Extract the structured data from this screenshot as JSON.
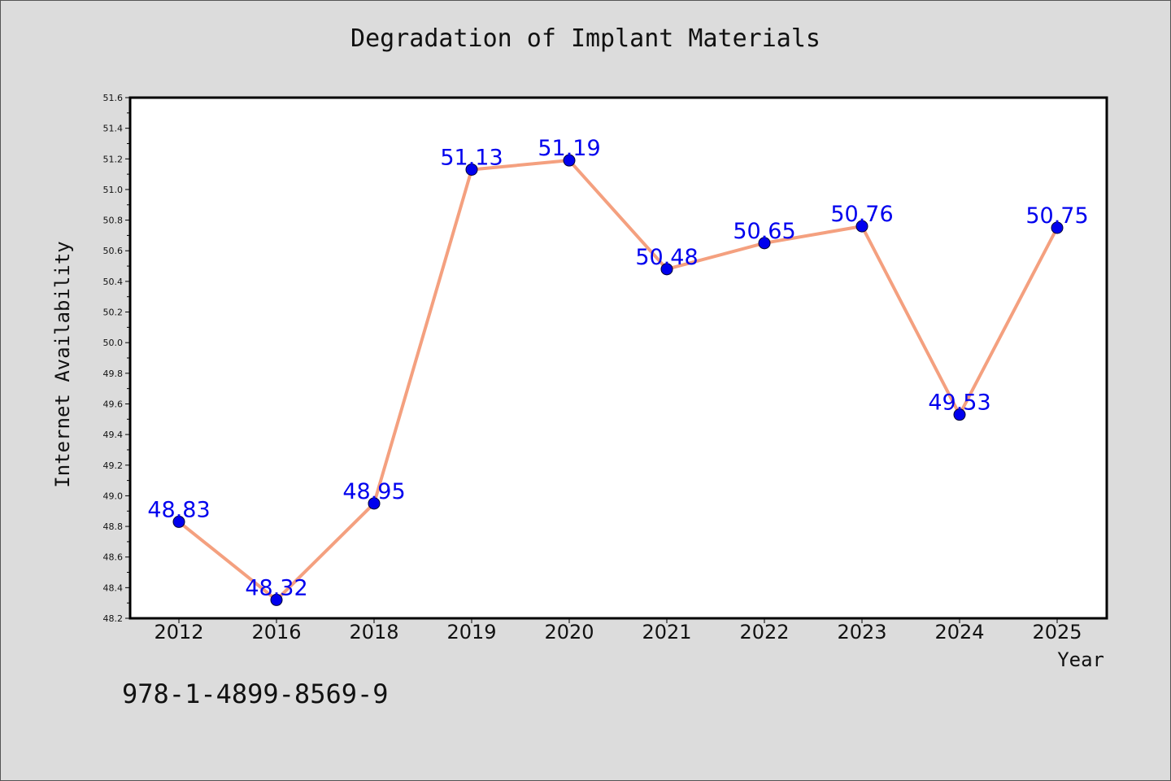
{
  "chart_data": {
    "type": "line",
    "title": "Degradation of Implant Materials",
    "xlabel": "Year",
    "ylabel": "Internet Availability",
    "categories": [
      "2012",
      "2016",
      "2018",
      "2019",
      "2020",
      "2021",
      "2022",
      "2023",
      "2024",
      "2025"
    ],
    "values": [
      48.83,
      48.32,
      48.95,
      51.13,
      51.19,
      50.48,
      50.65,
      50.76,
      49.53,
      50.75
    ],
    "data_labels": [
      "48.83",
      "48.32",
      "48.95",
      "51.13",
      "51.19",
      "50.48",
      "50.65",
      "50.76",
      "49.53",
      "50.75"
    ],
    "ylim": [
      48.2,
      51.6
    ],
    "yticks": [
      "48.2",
      "48.4",
      "48.6",
      "48.8",
      "49.0",
      "49.2",
      "49.4",
      "49.6",
      "49.8",
      "50.0",
      "50.2",
      "50.4",
      "50.6",
      "50.8",
      "51.0",
      "51.2",
      "51.4",
      "51.6"
    ],
    "grid": false,
    "legend": false,
    "colors": {
      "line": "#f4a07f",
      "marker": "#0000ee",
      "label": "#0000ee",
      "background": "#dcdcdc",
      "plot_background": "#ffffff"
    }
  },
  "footer": {
    "isbn": "978-1-4899-8569-9"
  }
}
